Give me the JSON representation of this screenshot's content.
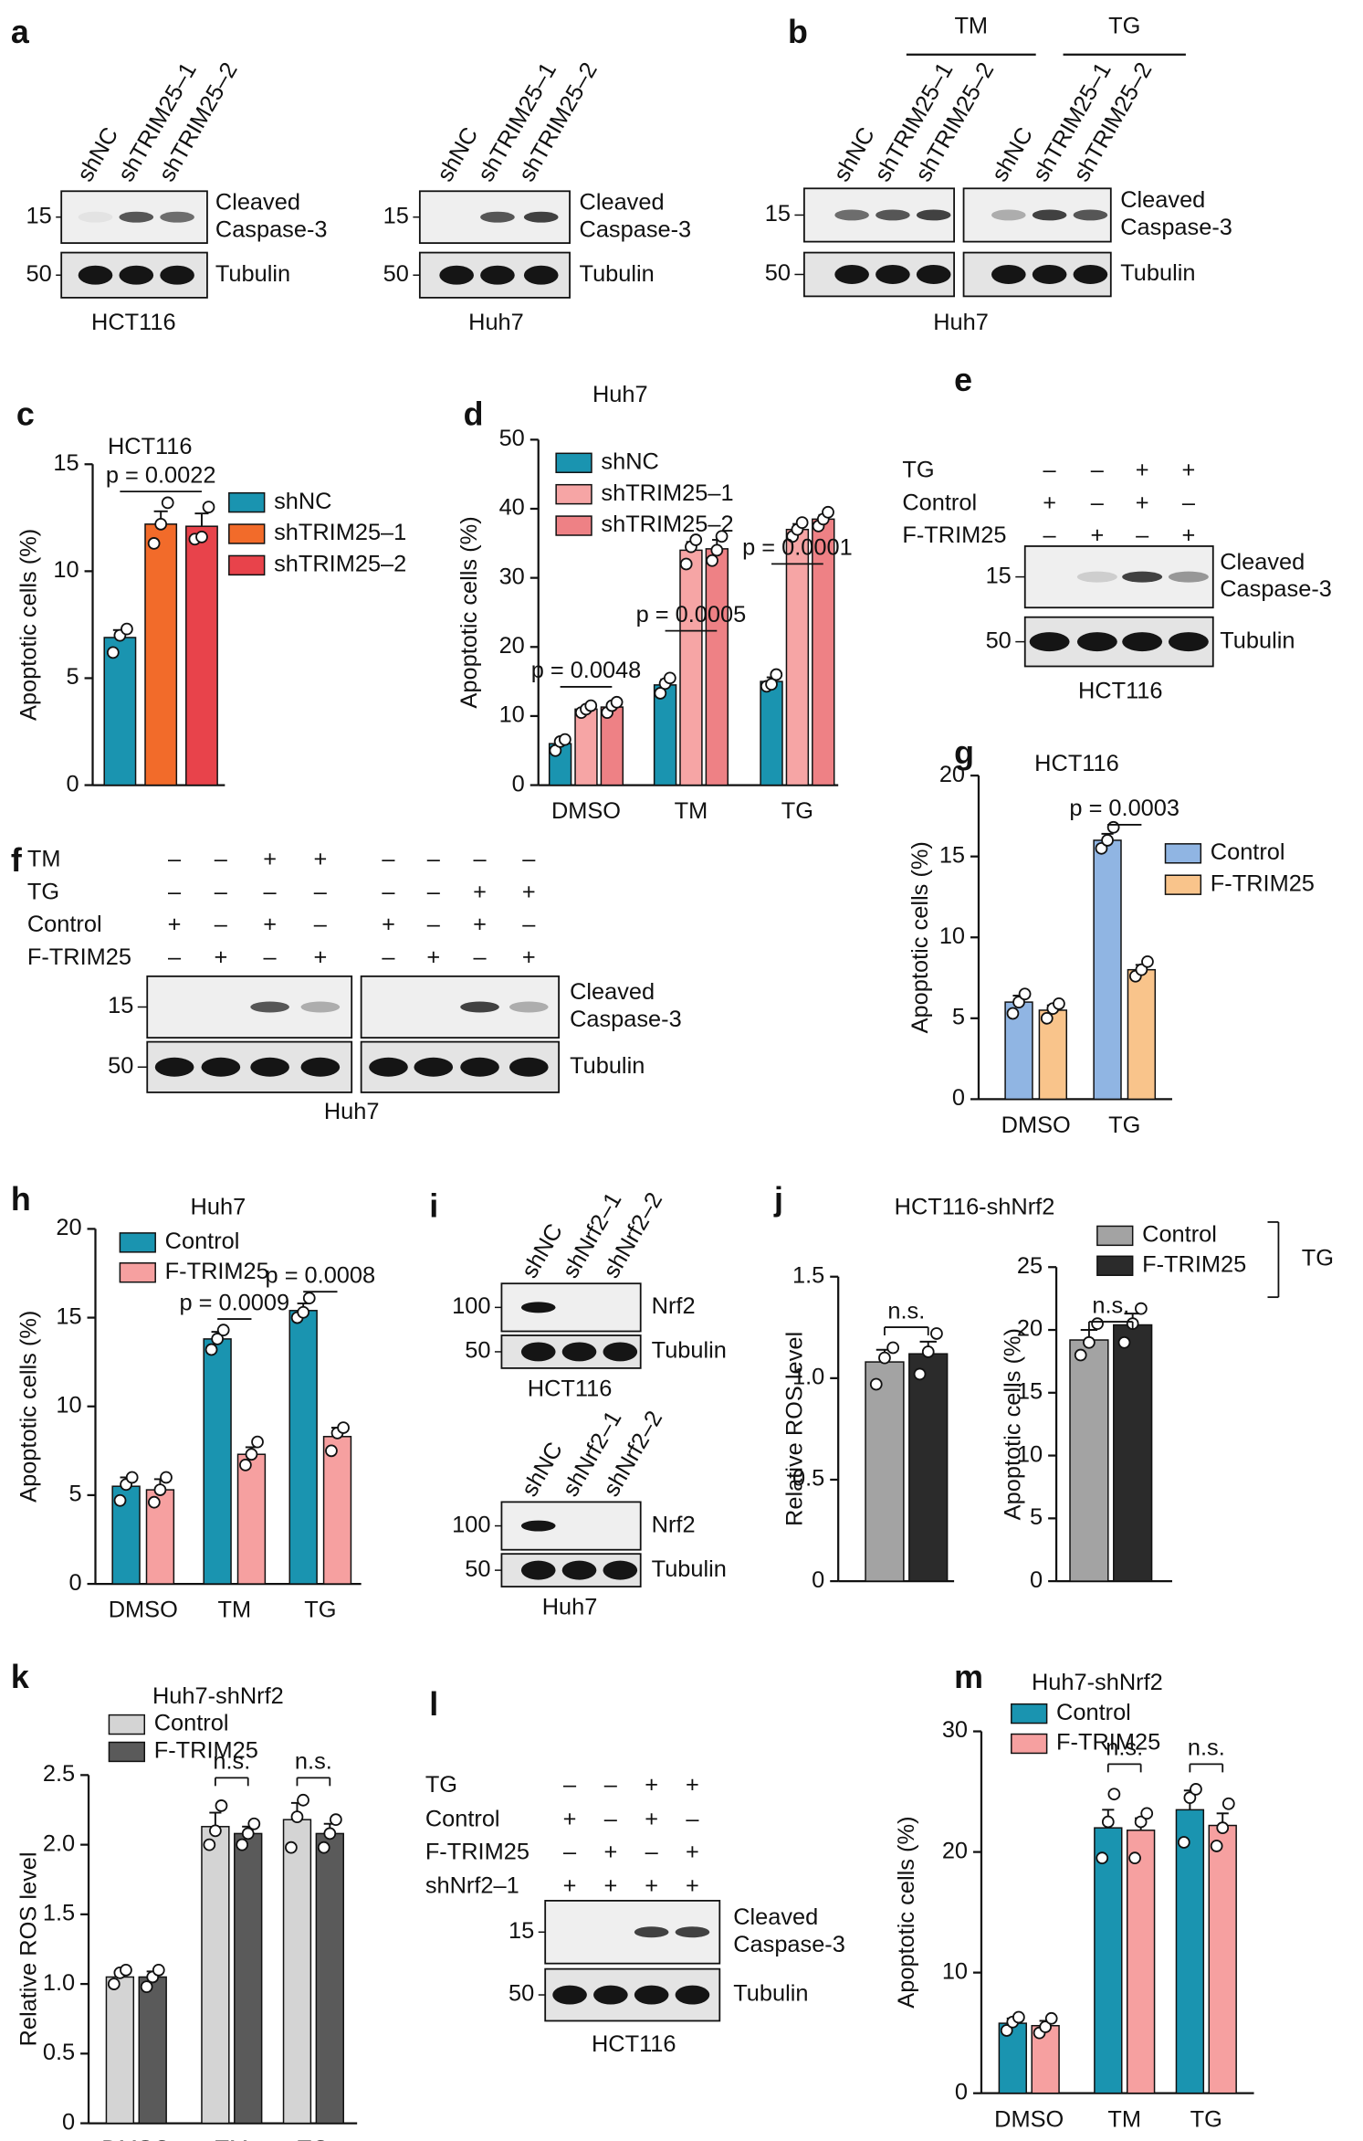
{
  "blots": [
    {
      "letter": "a",
      "lanes": [
        "shNC",
        "shTRIM25–1",
        "shTRIM25–2"
      ],
      "bands": [
        {
          "marker": "15",
          "label": [
            "Cleaved",
            "Caspase-3"
          ]
        },
        {
          "marker": "50",
          "label": [
            "Tubulin"
          ]
        }
      ],
      "cell_line": "HCT116"
    },
    {
      "lanes": [
        "shNC",
        "shTRIM25–1",
        "shTRIM25–2"
      ],
      "bands": [
        {
          "marker": "15",
          "label": [
            "Cleaved",
            "Caspase-3"
          ]
        },
        {
          "marker": "50",
          "label": [
            "Tubulin"
          ]
        }
      ],
      "cell_line": "Huh7"
    },
    {
      "letter": "b",
      "groups": [
        "TM",
        "TG"
      ],
      "lanes": [
        "shNC",
        "shTRIM25–1",
        "shTRIM25–2",
        "shNC",
        "shTRIM25–1",
        "shTRIM25–2"
      ],
      "bands": [
        {
          "marker": "15",
          "label": [
            "Cleaved",
            "Caspase-3"
          ]
        },
        {
          "marker": "50",
          "label": [
            "Tubulin"
          ]
        }
      ],
      "cell_line": "Huh7"
    },
    {
      "letter": "e",
      "rows": [
        {
          "label": "TG",
          "marks": [
            "–",
            "–",
            "+",
            "+"
          ]
        },
        {
          "label": "Control",
          "marks": [
            "+",
            "–",
            "+",
            "–"
          ]
        },
        {
          "label": "F-TRIM25",
          "marks": [
            "–",
            "+",
            "–",
            "+"
          ]
        }
      ],
      "bands": [
        {
          "marker": "15",
          "label": [
            "Cleaved",
            "Caspase-3"
          ]
        },
        {
          "marker": "50",
          "label": [
            "Tubulin"
          ]
        }
      ],
      "cell_line": "HCT116"
    },
    {
      "letter": "f",
      "rows": [
        {
          "label": "TM",
          "marks": [
            "–",
            "–",
            "+",
            "+",
            "–",
            "–",
            "–",
            "–"
          ]
        },
        {
          "label": "TG",
          "marks": [
            "–",
            "–",
            "–",
            "–",
            "–",
            "–",
            "+",
            "+"
          ]
        },
        {
          "label": "Control",
          "marks": [
            "+",
            "–",
            "+",
            "–",
            "+",
            "–",
            "+",
            "–"
          ]
        },
        {
          "label": "F-TRIM25",
          "marks": [
            "–",
            "+",
            "–",
            "+",
            "–",
            "+",
            "–",
            "+"
          ]
        }
      ],
      "bands": [
        {
          "marker": "15",
          "label": [
            "Cleaved",
            "Caspase-3"
          ]
        },
        {
          "marker": "50",
          "label": [
            "Tubulin"
          ]
        }
      ],
      "cell_line": "Huh7"
    },
    {
      "letter": "i",
      "lanes": [
        "shNC",
        "shNrf2–1",
        "shNrf2–2"
      ],
      "bands": [
        {
          "marker": "100",
          "label": [
            "Nrf2"
          ]
        },
        {
          "marker": "50",
          "label": [
            "Tubulin"
          ]
        }
      ],
      "cell_line": "HCT116"
    },
    {
      "lanes": [
        "shNC",
        "shNrf2–1",
        "shNrf2–2"
      ],
      "bands": [
        {
          "marker": "100",
          "label": [
            "Nrf2"
          ]
        },
        {
          "marker": "50",
          "label": [
            "Tubulin"
          ]
        }
      ],
      "cell_line": "Huh7"
    },
    {
      "letter": "l",
      "rows": [
        {
          "label": "TG",
          "marks": [
            "–",
            "–",
            "+",
            "+"
          ]
        },
        {
          "label": "Control",
          "marks": [
            "+",
            "–",
            "+",
            "–"
          ]
        },
        {
          "label": "F-TRIM25",
          "marks": [
            "–",
            "+",
            "–",
            "+"
          ]
        },
        {
          "label": "shNrf2–1",
          "marks": [
            "+",
            "+",
            "+",
            "+"
          ]
        }
      ],
      "bands": [
        {
          "marker": "15",
          "label": [
            "Cleaved",
            "Caspase-3"
          ]
        },
        {
          "marker": "50",
          "label": [
            "Tubulin"
          ]
        }
      ],
      "cell_line": "HCT116"
    }
  ],
  "chart_data": [
    {
      "type": "bar",
      "letter": "c",
      "title": "HCT116",
      "ylabel": "Apoptotic cells (%)",
      "categories": [
        null
      ],
      "ylim": [
        0,
        15
      ],
      "yticks": [
        0,
        5,
        10,
        15
      ],
      "series": [
        {
          "name": "shNC",
          "color": "#1a94b0",
          "values": [
            6.9
          ],
          "errors": [
            0.35
          ],
          "points": [
            [
              6.2,
              7.0,
              7.3
            ]
          ]
        },
        {
          "name": "shTRIM25–1",
          "color": "#f26b2a",
          "values": [
            12.2
          ],
          "errors": [
            0.6
          ],
          "points": [
            [
              11.3,
              12.2,
              13.2
            ]
          ]
        },
        {
          "name": "shTRIM25–2",
          "color": "#e8434b",
          "values": [
            12.1
          ],
          "errors": [
            0.6
          ],
          "points": [
            [
              11.5,
              11.6,
              13.0
            ]
          ]
        }
      ],
      "annotations": [
        {
          "text": "p = 0.0022"
        }
      ]
    },
    {
      "type": "bar",
      "letter": "d",
      "title": "Huh7",
      "ylabel": "Apoptotic cells (%)",
      "categories": [
        "DMSO",
        "TM",
        "TG"
      ],
      "ylim": [
        0,
        50
      ],
      "yticks": [
        0,
        10,
        20,
        30,
        40,
        50
      ],
      "series": [
        {
          "name": "shNC",
          "color": "#1a94b0",
          "values": [
            6.0,
            14.5,
            15.0
          ],
          "errors": [
            0.7,
            0.8,
            0.6
          ],
          "points": [
            [
              5.0,
              6.3,
              6.6
            ],
            [
              13.3,
              14.7,
              15.5
            ],
            [
              14.3,
              14.6,
              16.0
            ]
          ]
        },
        {
          "name": "shTRIM25–1",
          "color": "#f6a5a5",
          "values": [
            11.0,
            34.0,
            37.0
          ],
          "errors": [
            0.5,
            1.2,
            0.8
          ],
          "points": [
            [
              10.5,
              11.0,
              11.5
            ],
            [
              32.0,
              34.5,
              35.5
            ],
            [
              36.0,
              37.0,
              38.0
            ]
          ]
        },
        {
          "name": "shTRIM25–2",
          "color": "#ee8185",
          "values": [
            11.3,
            34.2,
            38.5
          ],
          "errors": [
            0.6,
            1.3,
            0.6
          ],
          "points": [
            [
              10.5,
              11.5,
              12.0
            ],
            [
              32.5,
              34.0,
              36.0
            ],
            [
              37.5,
              38.5,
              39.5
            ]
          ]
        }
      ],
      "annotations": [
        {
          "text": "p = 0.0048"
        },
        {
          "text": "p = 0.0005"
        },
        {
          "text": "p = 0.0001"
        }
      ]
    },
    {
      "type": "bar",
      "letter": "g",
      "title": "HCT116",
      "ylabel": "Apoptotic cells (%)",
      "categories": [
        "DMSO",
        "TG"
      ],
      "ylim": [
        0,
        20
      ],
      "yticks": [
        0,
        5,
        10,
        15,
        20
      ],
      "series": [
        {
          "name": "Control",
          "color": "#90b5e3",
          "values": [
            6.0,
            16.0
          ],
          "errors": [
            0.4,
            0.4
          ],
          "points": [
            [
              5.3,
              6.0,
              6.5
            ],
            [
              15.5,
              16.0,
              16.8
            ]
          ]
        },
        {
          "name": "F-TRIM25",
          "color": "#f9c48b",
          "values": [
            5.5,
            8.0
          ],
          "errors": [
            0.3,
            0.3
          ],
          "points": [
            [
              5.0,
              5.6,
              5.9
            ],
            [
              7.6,
              8.0,
              8.5
            ]
          ]
        }
      ],
      "annotations": [
        {
          "text": "p = 0.0003"
        }
      ]
    },
    {
      "type": "bar",
      "letter": "h",
      "title": "Huh7",
      "ylabel": "Apoptotic cells (%)",
      "categories": [
        "DMSO",
        "TM",
        "TG"
      ],
      "ylim": [
        0,
        20
      ],
      "yticks": [
        0,
        5,
        10,
        15,
        20
      ],
      "series": [
        {
          "name": "Control",
          "color": "#1a94b0",
          "values": [
            5.5,
            13.8,
            15.4
          ],
          "errors": [
            0.5,
            0.4,
            0.4
          ],
          "points": [
            [
              4.7,
              5.6,
              6.0
            ],
            [
              13.2,
              13.8,
              14.3
            ],
            [
              15.0,
              15.3,
              16.1
            ]
          ]
        },
        {
          "name": "F-TRIM25",
          "color": "#f6a0a0",
          "values": [
            5.3,
            7.3,
            8.3
          ],
          "errors": [
            0.6,
            0.4,
            0.5
          ],
          "points": [
            [
              4.6,
              5.3,
              6.0
            ],
            [
              6.7,
              7.3,
              8.0
            ],
            [
              7.5,
              8.5,
              8.8
            ]
          ]
        }
      ],
      "annotations": [
        {
          "text": "p = 0.0009"
        },
        {
          "text": "p = 0.0008"
        }
      ]
    },
    {
      "type": "bar",
      "letter": "j",
      "title": "HCT116-shNrf2",
      "ylabel": "Relative ROS level",
      "categories": [
        null
      ],
      "ylim": [
        0,
        1.5
      ],
      "yticks": [
        0,
        0.5,
        {
          "value": 1,
          "label": "1.0"
        },
        1.5
      ],
      "series": [
        {
          "color": "#a3a3a3",
          "values": [
            1.08
          ],
          "errors": [
            0.06
          ],
          "points": [
            [
              0.97,
              1.1,
              1.15
            ]
          ]
        },
        {
          "color": "#2b2b2b",
          "values": [
            1.12
          ],
          "errors": [
            0.06
          ],
          "points": [
            [
              1.02,
              1.13,
              1.22
            ]
          ]
        }
      ],
      "annotations": [
        {
          "text": "n.s."
        }
      ]
    },
    {
      "type": "bar",
      "ylabel": "Apoptotic cells (%)",
      "categories": [
        null
      ],
      "ylim": [
        0,
        25
      ],
      "yticks": [
        0,
        5,
        10,
        15,
        20,
        25
      ],
      "legend_group": "TG",
      "series": [
        {
          "name": "Control",
          "color": "#a3a3a3",
          "values": [
            19.2
          ],
          "errors": [
            0.8
          ],
          "points": [
            [
              18.0,
              19.0,
              20.5
            ]
          ]
        },
        {
          "name": "F-TRIM25",
          "color": "#2b2b2b",
          "values": [
            20.4
          ],
          "errors": [
            0.9
          ],
          "points": [
            [
              19.0,
              20.5,
              21.7
            ]
          ]
        }
      ],
      "annotations": [
        {
          "text": "n.s."
        }
      ]
    },
    {
      "type": "bar",
      "letter": "k",
      "title": "Huh7-shNrf2",
      "ylabel": "Relative ROS level",
      "categories": [
        "DMSO",
        "TM",
        "TG"
      ],
      "ylim": [
        0,
        2.5
      ],
      "yticks": [
        0,
        0.5,
        {
          "value": 1,
          "label": "1.0"
        },
        1.5,
        {
          "value": 2,
          "label": "2.0"
        },
        2.5
      ],
      "series": [
        {
          "name": "Control",
          "color": "#d4d4d4",
          "values": [
            1.05,
            2.13,
            2.18
          ],
          "errors": [
            0.04,
            0.1,
            0.12
          ],
          "points": [
            [
              1.0,
              1.08,
              1.1
            ],
            [
              2.0,
              2.1,
              2.28
            ],
            [
              1.98,
              2.2,
              2.32
            ]
          ]
        },
        {
          "name": "F-TRIM25",
          "color": "#5a5a5a",
          "values": [
            1.05,
            2.08,
            2.08
          ],
          "errors": [
            0.04,
            0.05,
            0.07
          ],
          "points": [
            [
              0.98,
              1.05,
              1.1
            ],
            [
              2.0,
              2.08,
              2.15
            ],
            [
              1.98,
              2.08,
              2.18
            ]
          ]
        }
      ],
      "annotations": [
        {
          "text": "n.s."
        },
        {
          "text": "n.s."
        }
      ]
    },
    {
      "type": "bar",
      "letter": "m",
      "title": "Huh7-shNrf2",
      "ylabel": "Apoptotic cells (%)",
      "categories": [
        "DMSO",
        "TM",
        "TG"
      ],
      "ylim": [
        0,
        30
      ],
      "yticks": [
        0,
        10,
        20,
        30
      ],
      "series": [
        {
          "name": "Control",
          "color": "#1a94b0",
          "values": [
            5.8,
            22.0,
            23.5
          ],
          "errors": [
            0.4,
            1.5,
            1.6
          ],
          "points": [
            [
              5.2,
              5.9,
              6.3
            ],
            [
              19.5,
              22.5,
              24.8
            ],
            [
              20.8,
              24.5,
              25.2
            ]
          ]
        },
        {
          "name": "F-TRIM25",
          "color": "#f6a0a0",
          "values": [
            5.6,
            21.8,
            22.2
          ],
          "errors": [
            0.4,
            1.0,
            1.0
          ],
          "points": [
            [
              5.0,
              5.5,
              6.2
            ],
            [
              19.5,
              22.5,
              23.2
            ],
            [
              20.5,
              22.0,
              24.0
            ]
          ]
        }
      ],
      "annotations": [
        {
          "text": "n.s."
        },
        {
          "text": "n.s."
        }
      ]
    }
  ]
}
